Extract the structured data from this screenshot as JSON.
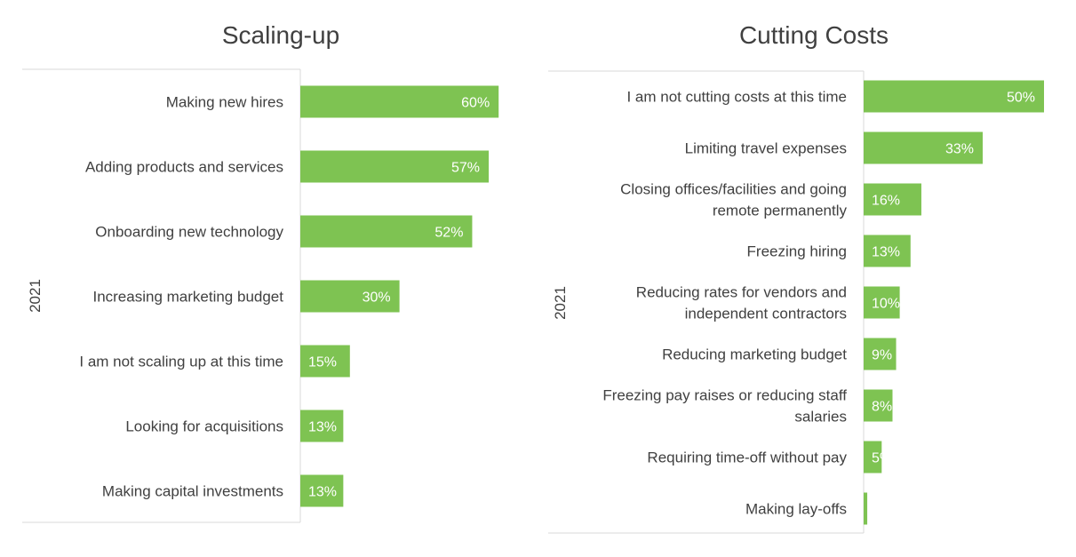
{
  "chart_data": [
    {
      "type": "bar",
      "orientation": "horizontal",
      "title": "Scaling-up",
      "group_label": "2021",
      "categories": [
        "Making new hires",
        "Adding products and services",
        "Onboarding new technology",
        "Increasing marketing budget",
        "I am not scaling up at this time",
        "Looking for acquisitions",
        "Making capital investments"
      ],
      "values": [
        60,
        57,
        52,
        30,
        15,
        13,
        13
      ],
      "value_labels": [
        "60%",
        "57%",
        "52%",
        "30%",
        "15%",
        "13%",
        "13%"
      ],
      "unit": "%",
      "xlim": [
        0,
        60
      ],
      "grid": false,
      "legend": "none",
      "bar_color": "#7ec352"
    },
    {
      "type": "bar",
      "orientation": "horizontal",
      "title": "Cutting Costs",
      "group_label": "2021",
      "categories": [
        "I am not cutting costs at this time",
        "Limiting travel expenses",
        "Closing offices/facilities and going\nremote permanently",
        "Freezing hiring",
        "Reducing rates for vendors and\nindependent contractors",
        "Reducing marketing budget",
        "Freezing pay raises or reducing staff\nsalaries",
        "Requiring time-off without pay",
        "Making lay-offs"
      ],
      "values": [
        50,
        33,
        16,
        13,
        10,
        9,
        8,
        5,
        1
      ],
      "value_labels": [
        "50%",
        "33%",
        "16%",
        "13%",
        "10%",
        "9%",
        "8%",
        "5%",
        ""
      ],
      "unit": "%",
      "xlim": [
        0,
        50
      ],
      "grid": false,
      "legend": "none",
      "bar_color": "#7ec352"
    }
  ]
}
